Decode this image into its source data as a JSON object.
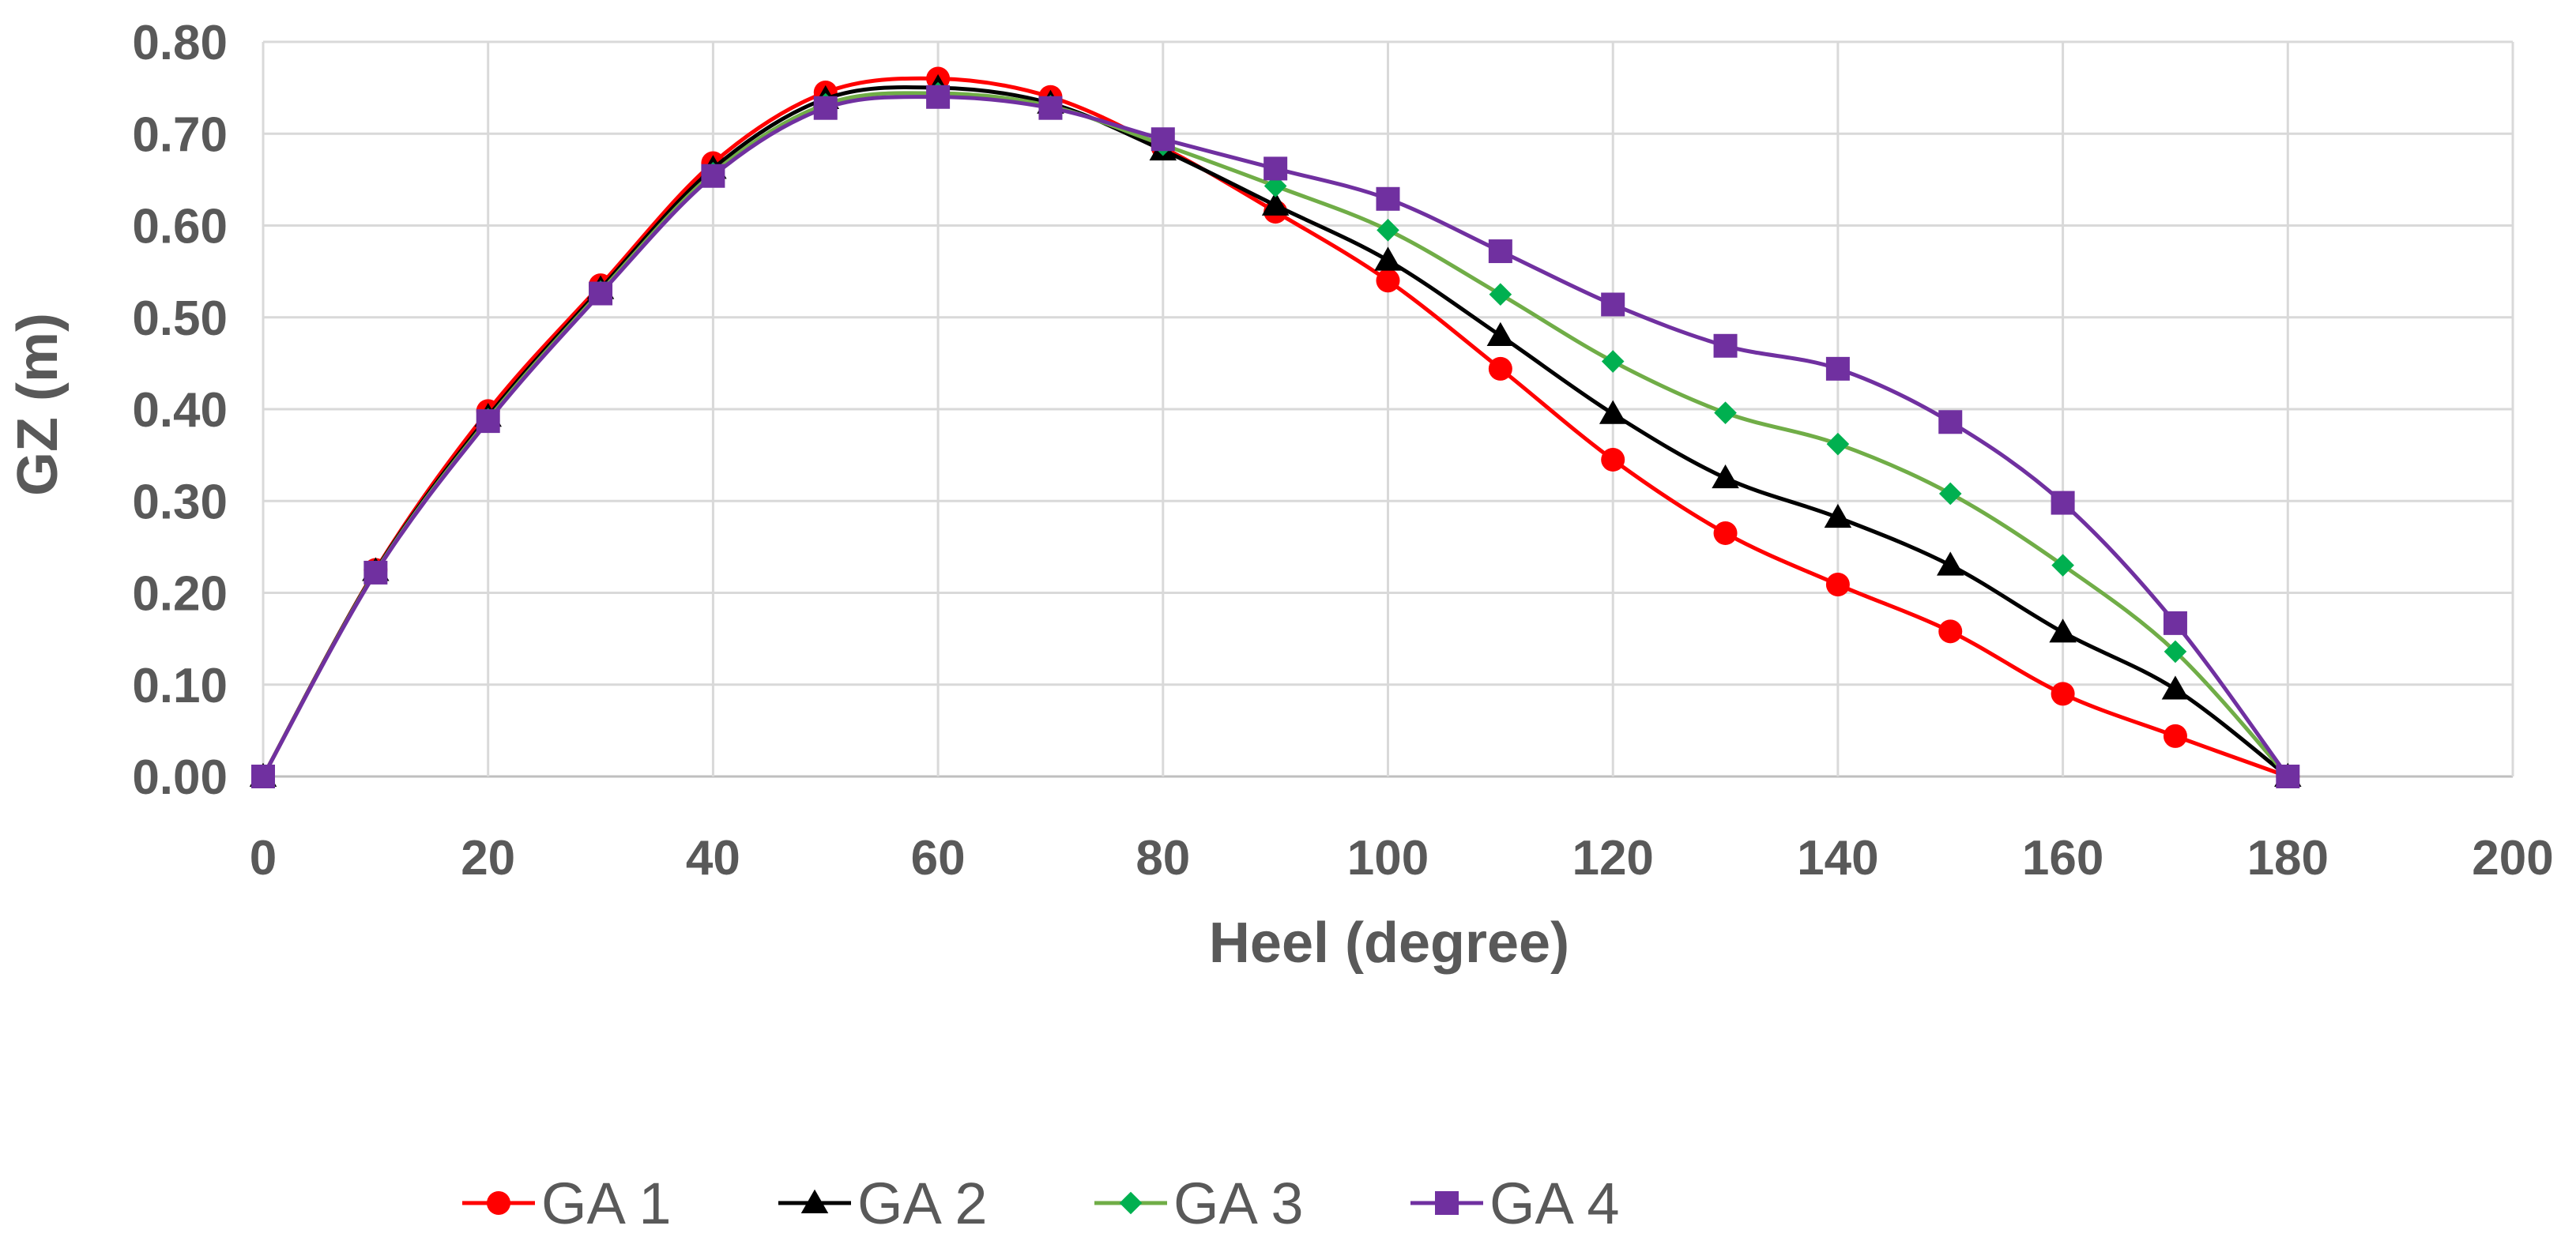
{
  "chart_data": {
    "type": "line",
    "title": "",
    "xlabel": "Heel (degree)",
    "ylabel": "GZ (m)",
    "xlim": [
      0,
      200
    ],
    "ylim": [
      0,
      0.8
    ],
    "xticks": [
      "0",
      "20",
      "40",
      "60",
      "80",
      "100",
      "120",
      "140",
      "160",
      "180",
      "200"
    ],
    "yticks": [
      "0.00",
      "0.10",
      "0.20",
      "0.30",
      "0.40",
      "0.50",
      "0.60",
      "0.70",
      "0.80"
    ],
    "grid": true,
    "legend_position": "bottom",
    "x": [
      0,
      10,
      20,
      30,
      40,
      50,
      60,
      70,
      80,
      90,
      100,
      110,
      120,
      130,
      140,
      150,
      160,
      170,
      180
    ],
    "series": [
      {
        "name": "GA 1",
        "color": "#ff0000",
        "marker": "circle",
        "values": [
          0.0,
          0.225,
          0.398,
          0.535,
          0.668,
          0.745,
          0.76,
          0.74,
          0.685,
          0.615,
          0.54,
          0.444,
          0.345,
          0.265,
          0.209,
          0.158,
          0.09,
          0.044,
          0.0
        ]
      },
      {
        "name": "GA 2",
        "color": "#000000",
        "marker": "triangle",
        "values": [
          0.0,
          0.224,
          0.392,
          0.531,
          0.662,
          0.738,
          0.75,
          0.733,
          0.682,
          0.622,
          0.562,
          0.48,
          0.395,
          0.325,
          0.282,
          0.23,
          0.157,
          0.095,
          0.0
        ]
      },
      {
        "name": "GA 3",
        "color": "#00b050",
        "line_color": "#70ad47",
        "marker": "diamond",
        "values": [
          0.0,
          0.223,
          0.389,
          0.528,
          0.657,
          0.732,
          0.744,
          0.73,
          0.688,
          0.643,
          0.595,
          0.525,
          0.452,
          0.396,
          0.362,
          0.308,
          0.23,
          0.136,
          0.0
        ]
      },
      {
        "name": "GA 4",
        "color": "#7030a0",
        "marker": "square",
        "values": [
          0.0,
          0.222,
          0.387,
          0.526,
          0.654,
          0.728,
          0.74,
          0.728,
          0.694,
          0.662,
          0.629,
          0.572,
          0.514,
          0.469,
          0.444,
          0.386,
          0.298,
          0.167,
          0.0
        ]
      }
    ]
  }
}
